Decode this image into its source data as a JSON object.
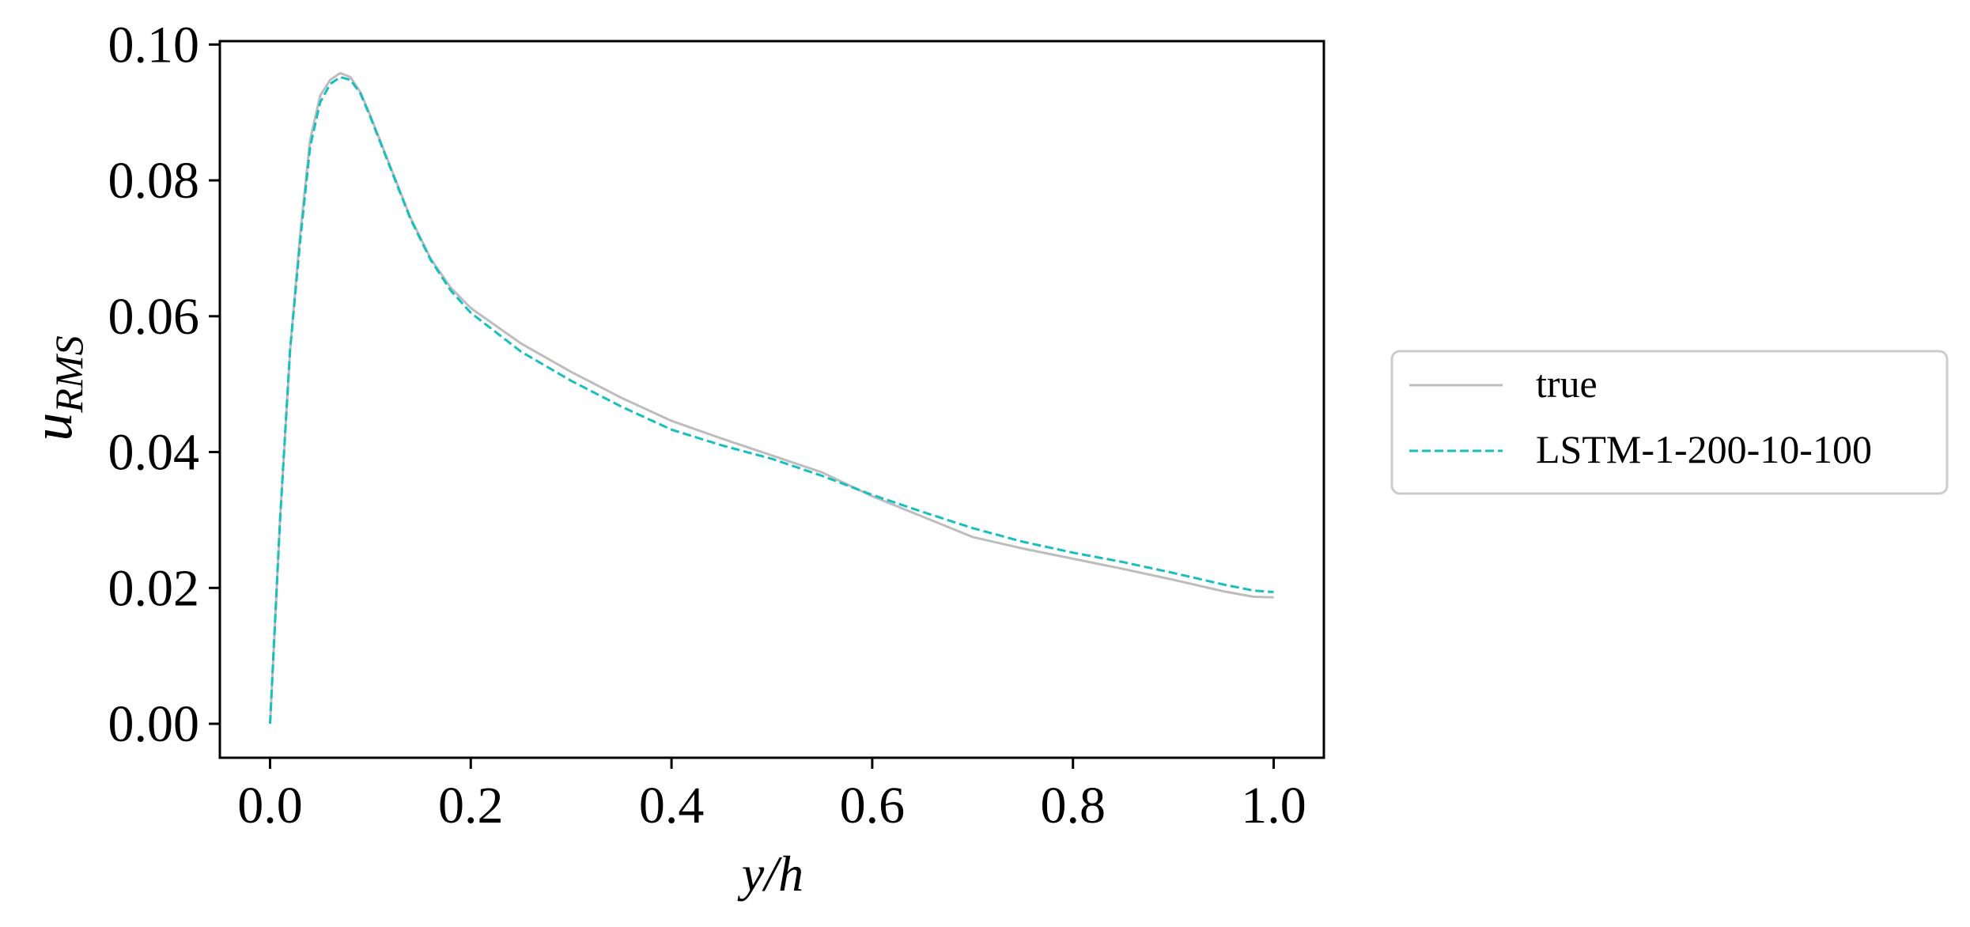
{
  "chart_data": {
    "type": "line",
    "title": "",
    "xlabel": "y/h",
    "ylabel": {
      "base": "u",
      "sub": "RMS"
    },
    "xlim": [
      -0.05,
      1.05
    ],
    "ylim": [
      -0.005,
      0.1005
    ],
    "xticks": [
      "0.0",
      "0.2",
      "0.4",
      "0.6",
      "0.8",
      "1.0"
    ],
    "yticks": [
      "0.00",
      "0.02",
      "0.04",
      "0.06",
      "0.08",
      "0.10"
    ],
    "grid": false,
    "legend_position": "outside-right",
    "series": [
      {
        "name": "true",
        "color": "#bdbdbd",
        "style": "solid",
        "x": [
          0.0,
          0.01,
          0.02,
          0.03,
          0.04,
          0.05,
          0.06,
          0.07,
          0.08,
          0.09,
          0.1,
          0.12,
          0.14,
          0.16,
          0.18,
          0.2,
          0.25,
          0.3,
          0.35,
          0.4,
          0.45,
          0.5,
          0.55,
          0.6,
          0.65,
          0.7,
          0.75,
          0.8,
          0.85,
          0.9,
          0.95,
          0.98,
          1.0
        ],
        "y": [
          0.0,
          0.03,
          0.055,
          0.072,
          0.086,
          0.0925,
          0.0948,
          0.0958,
          0.0952,
          0.093,
          0.0895,
          0.082,
          0.0745,
          0.0685,
          0.0642,
          0.0612,
          0.056,
          0.0518,
          0.048,
          0.0446,
          0.042,
          0.0395,
          0.037,
          0.0335,
          0.0305,
          0.0275,
          0.0258,
          0.0243,
          0.0228,
          0.0212,
          0.0195,
          0.0187,
          0.0186
        ]
      },
      {
        "name": "LSTM-1-200-10-100",
        "color": "#17bfbf",
        "style": "dashed",
        "x": [
          0.0,
          0.01,
          0.02,
          0.03,
          0.04,
          0.05,
          0.06,
          0.07,
          0.08,
          0.09,
          0.1,
          0.12,
          0.14,
          0.16,
          0.18,
          0.2,
          0.25,
          0.3,
          0.35,
          0.4,
          0.45,
          0.5,
          0.55,
          0.6,
          0.65,
          0.7,
          0.75,
          0.8,
          0.85,
          0.9,
          0.95,
          0.98,
          1.0
        ],
        "y": [
          0.0,
          0.03,
          0.055,
          0.071,
          0.085,
          0.0915,
          0.0942,
          0.0952,
          0.0948,
          0.0928,
          0.0893,
          0.0818,
          0.0743,
          0.0683,
          0.0638,
          0.0605,
          0.0548,
          0.0505,
          0.0467,
          0.0433,
          0.041,
          0.039,
          0.0365,
          0.0337,
          0.0312,
          0.0288,
          0.0268,
          0.0252,
          0.0238,
          0.0222,
          0.0205,
          0.0196,
          0.0194
        ]
      }
    ]
  }
}
